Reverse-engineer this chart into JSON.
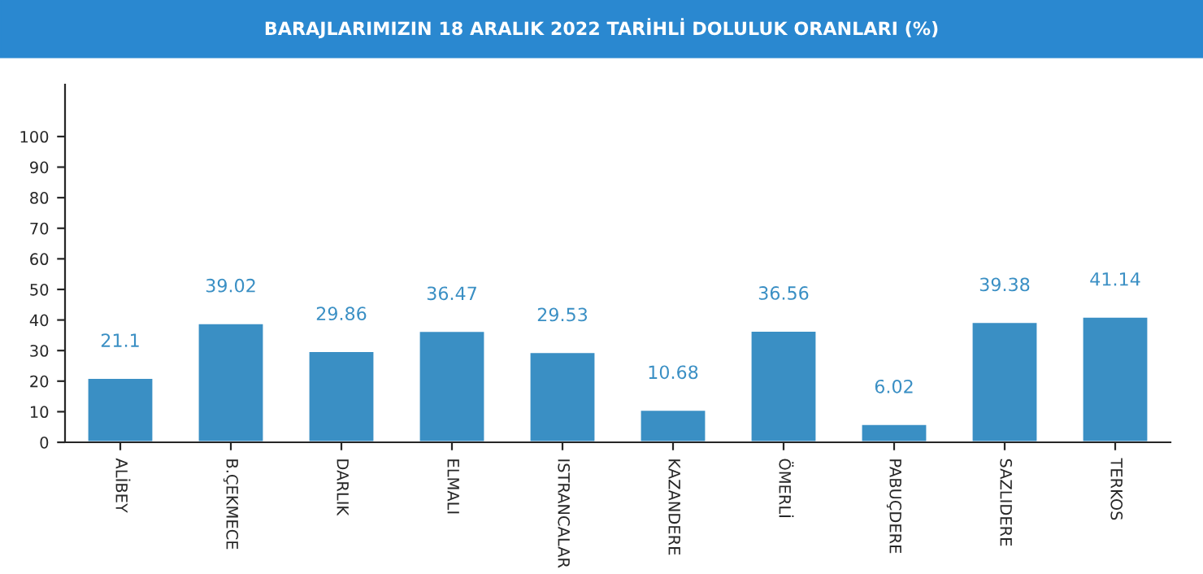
{
  "chart_data": {
    "type": "bar",
    "title": "BARAJLARIMIZIN 18 ARALIK 2022 TARİHLİ DOLULUK ORANLARI (%)",
    "categories": [
      "ALİBEY",
      "B.ÇEKMECE",
      "DARLIK",
      "ELMALI",
      "ISTRANCALAR",
      "KAZANDERE",
      "ÖMERLİ",
      "PABUÇDERE",
      "SAZLIDERE",
      "TERKOS"
    ],
    "values": [
      21.1,
      39.02,
      29.86,
      36.47,
      29.53,
      10.68,
      36.56,
      6.02,
      39.38,
      41.14
    ],
    "color": "#3a8fc4",
    "data_labels": true,
    "ylim": [
      0,
      117
    ],
    "yticks": [
      0,
      10,
      20,
      30,
      40,
      50,
      60,
      70,
      80,
      90,
      100
    ],
    "grid": false,
    "legend": false
  }
}
